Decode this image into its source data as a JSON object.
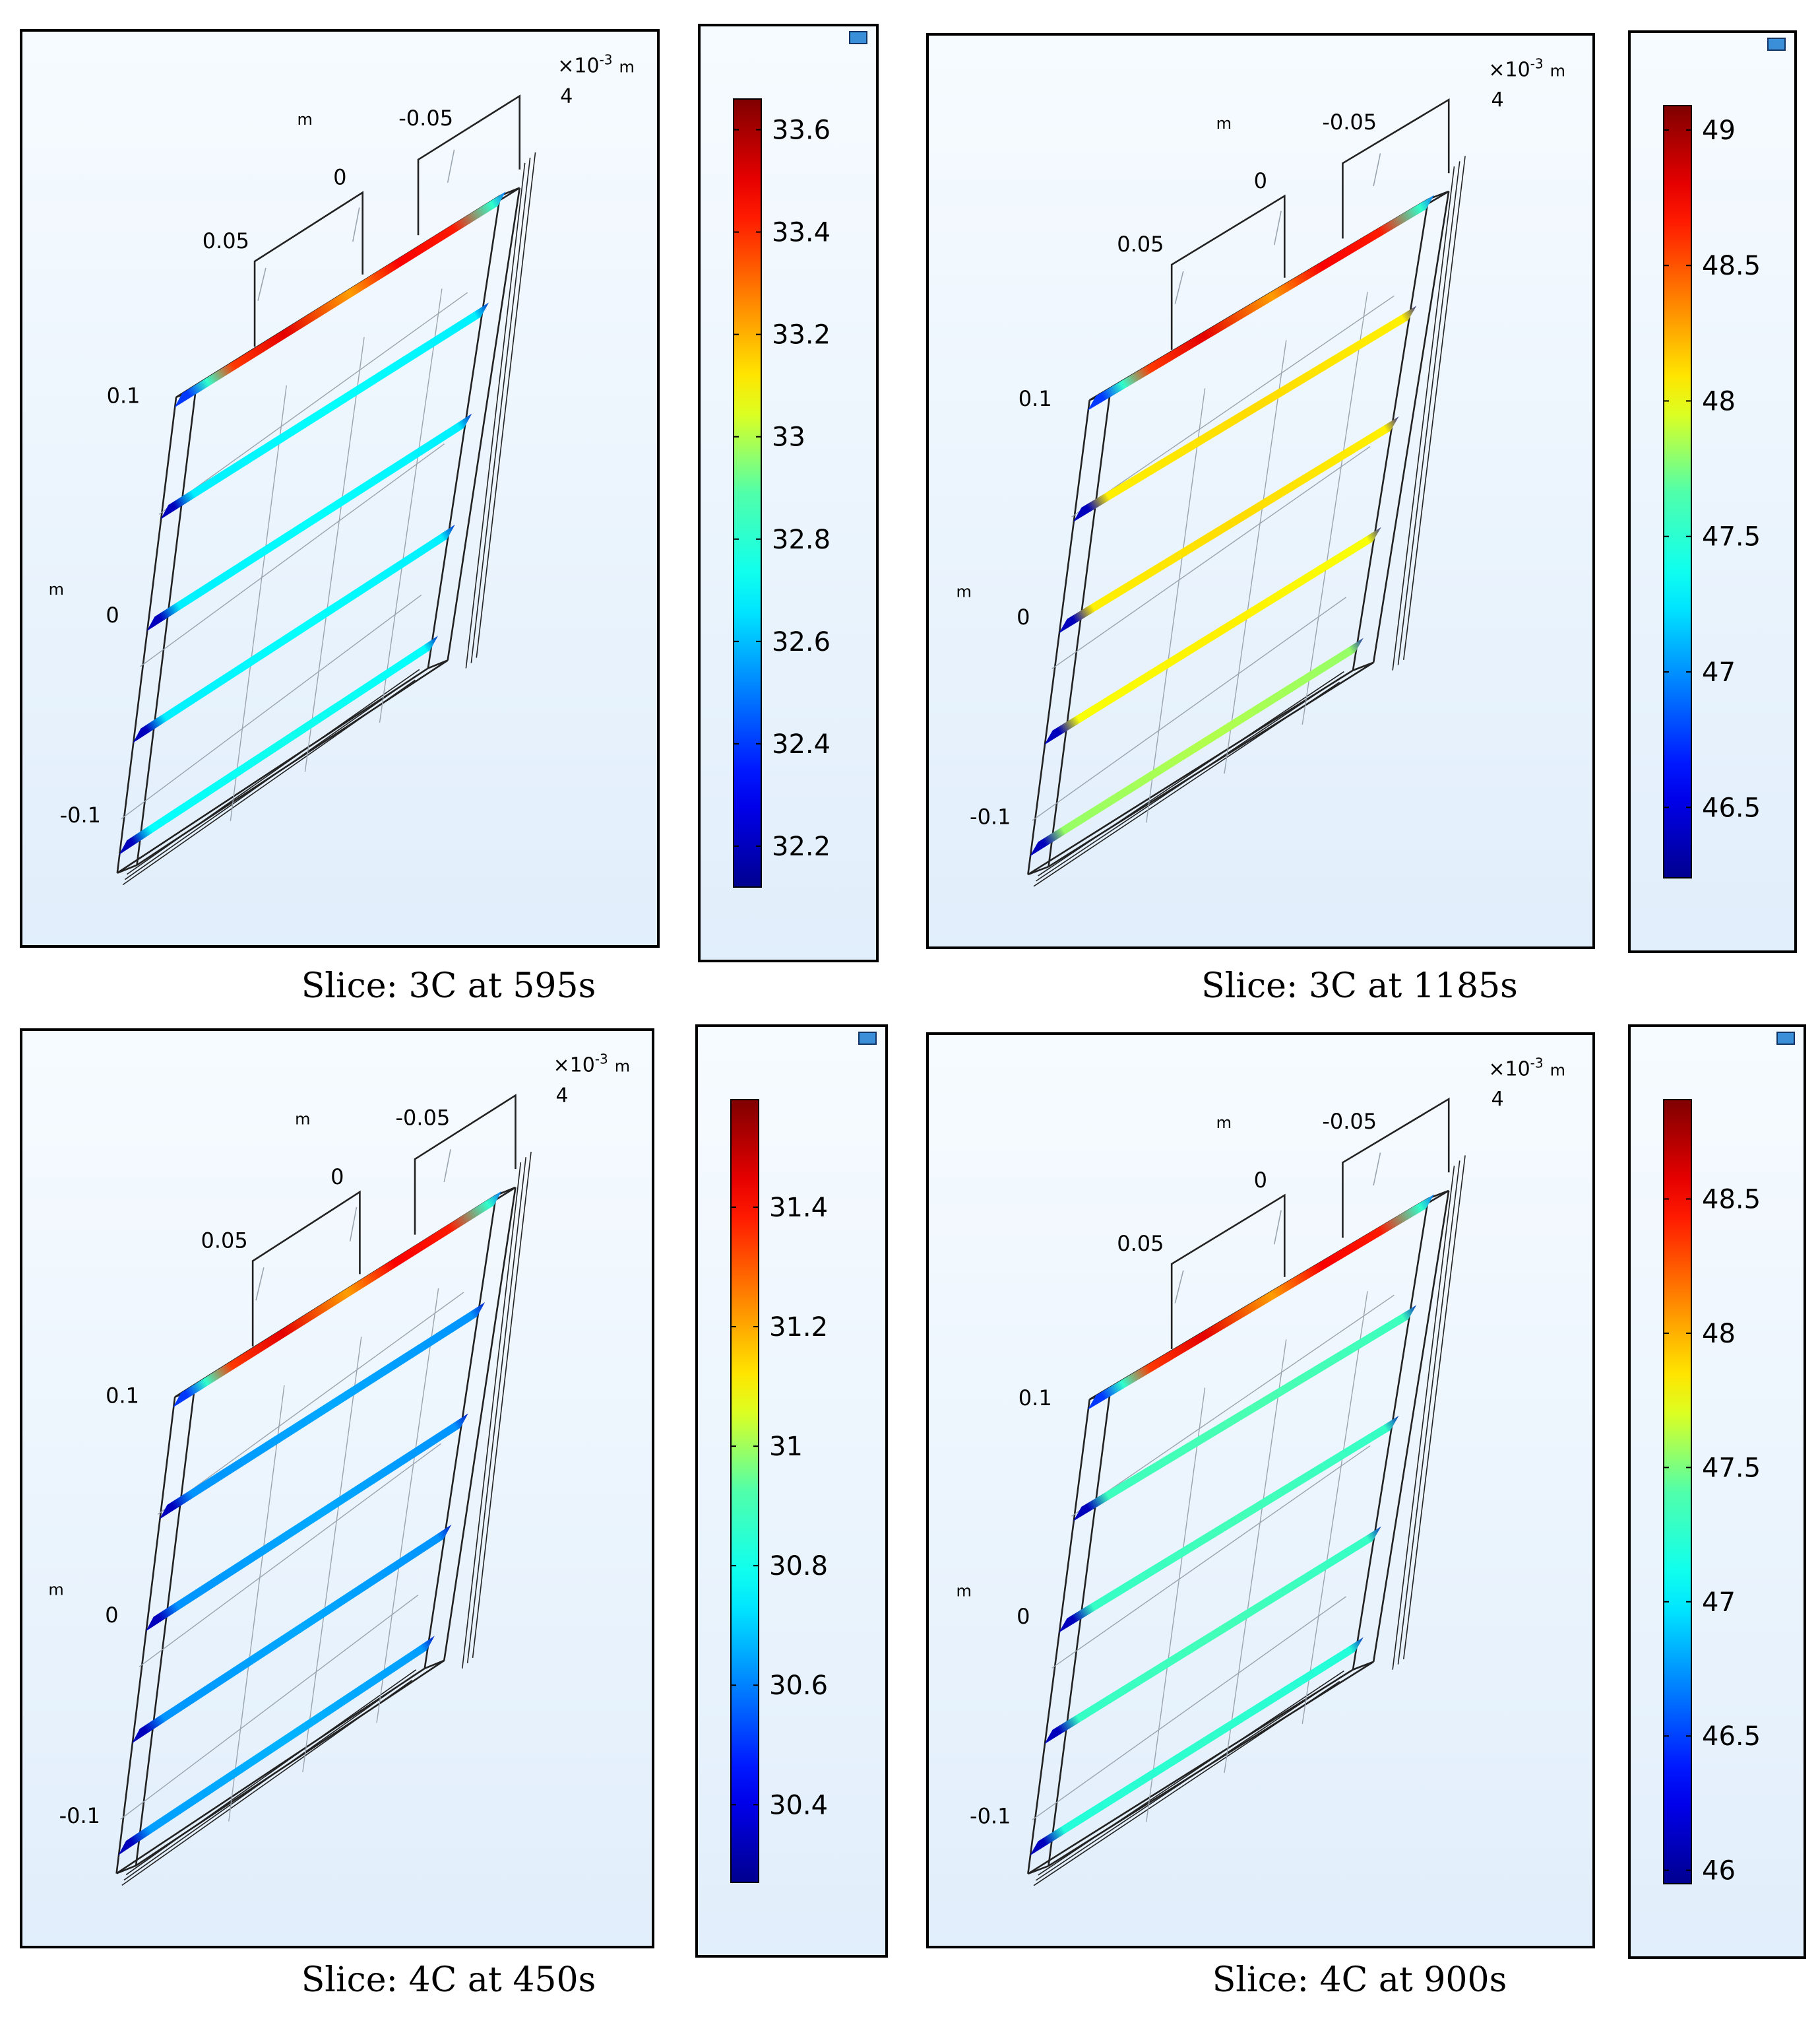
{
  "colors": {
    "low": "#00008f",
    "high": "#7f0000",
    "frame": "#222222"
  },
  "panels": [
    {
      "caption": "Slice: 3C at 595s",
      "axes": {
        "mult": "×10",
        "exp": "-3",
        "unit": "m",
        "depth_tick": "4",
        "x_unit": "m",
        "x_ticks": [
          "0.05",
          "0",
          "-0.05"
        ],
        "y_unit": "m",
        "y_ticks": [
          "0.1",
          "0",
          "-0.1"
        ]
      },
      "colorbar": {
        "min": 32.12,
        "max": 33.66,
        "ticks": [
          "33.6",
          "33.4",
          "33.2",
          "33",
          "32.8",
          "32.6",
          "32.4",
          "32.2"
        ]
      },
      "slices": [
        {
          "level": "hot-center"
        },
        {
          "level": 0.36
        },
        {
          "level": 0.36
        },
        {
          "level": 0.36
        },
        {
          "level": 0.38
        }
      ]
    },
    {
      "caption": "Slice: 3C at 1185s",
      "axes": {
        "mult": "×10",
        "exp": "-3",
        "unit": "m",
        "depth_tick": "4",
        "x_unit": "m",
        "x_ticks": [
          "0.05",
          "0",
          "-0.05"
        ],
        "y_unit": "m",
        "y_ticks": [
          "0.1",
          "0",
          "-0.1"
        ]
      },
      "colorbar": {
        "min": 46.24,
        "max": 49.09,
        "ticks": [
          "49",
          "48.5",
          "48",
          "47.5",
          "47",
          "46.5"
        ]
      },
      "slices": [
        {
          "level": "hot-center"
        },
        {
          "level": 0.64
        },
        {
          "level": 0.64
        },
        {
          "level": 0.62
        },
        {
          "level": 0.55
        }
      ]
    },
    {
      "caption": "Slice: 4C at 450s",
      "axes": {
        "mult": "×10",
        "exp": "-3",
        "unit": "m",
        "depth_tick": "4",
        "x_unit": "m",
        "x_ticks": [
          "0.05",
          "0",
          "-0.05"
        ],
        "y_unit": "m",
        "y_ticks": [
          "0.1",
          "0",
          "-0.1"
        ]
      },
      "colorbar": {
        "min": 30.27,
        "max": 31.58,
        "ticks": [
          "31.4",
          "31.2",
          "31",
          "30.8",
          "30.6",
          "30.4"
        ]
      },
      "slices": [
        {
          "level": "hot-center"
        },
        {
          "level": 0.27
        },
        {
          "level": 0.27
        },
        {
          "level": 0.27
        },
        {
          "level": 0.28
        }
      ]
    },
    {
      "caption": "Slice: 4C at 900s",
      "axes": {
        "mult": "×10",
        "exp": "-3",
        "unit": "m",
        "depth_tick": "4",
        "x_unit": "m",
        "x_ticks": [
          "0.05",
          "0",
          "-0.05"
        ],
        "y_unit": "m",
        "y_ticks": [
          "0.1",
          "0",
          "-0.1"
        ]
      },
      "colorbar": {
        "min": 45.95,
        "max": 48.87,
        "ticks": [
          "48.5",
          "48",
          "47.5",
          "47",
          "46.5",
          "46"
        ]
      },
      "slices": [
        {
          "level": "hot-center"
        },
        {
          "level": 0.47
        },
        {
          "level": 0.46
        },
        {
          "level": 0.46
        },
        {
          "level": 0.43
        }
      ]
    }
  ]
}
